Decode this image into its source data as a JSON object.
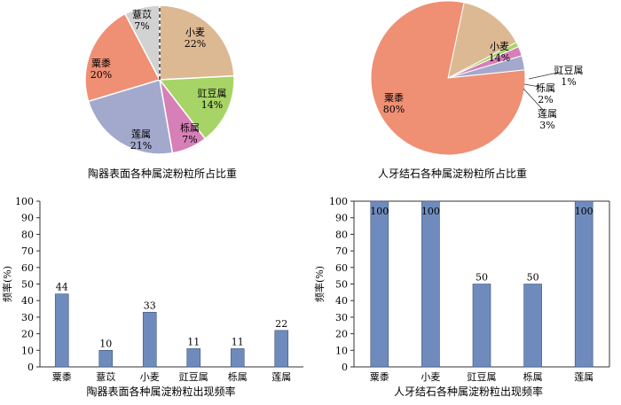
{
  "chart_data": [
    {
      "type": "pie",
      "title": "陶器表面各种属淀粉粒所占比重",
      "slices": [
        {
          "label": "小麦",
          "pct_label": "22%",
          "value": 22,
          "color": "#dcb993"
        },
        {
          "label": "豇豆属",
          "pct_label": "14%",
          "value": 14,
          "color": "#a7d466"
        },
        {
          "label": "栎属",
          "pct_label": "7%",
          "value": 7,
          "color": "#d77fb7"
        },
        {
          "label": "莲属",
          "pct_label": "21%",
          "value": 21,
          "color": "#a3a9cc"
        },
        {
          "label": "粟黍",
          "pct_label": "20%",
          "value": 20,
          "color": "#ef8f74"
        },
        {
          "label": "薏苡",
          "pct_label": "7%",
          "value": 7,
          "color": "#d2d2d2"
        }
      ]
    },
    {
      "type": "pie",
      "title": "人牙结石各种属淀粉粒所占比重",
      "slices": [
        {
          "label": "小麦",
          "pct_label": "14%",
          "value": 14,
          "color": "#dcb993"
        },
        {
          "label": "豇豆属",
          "pct_label": "1%",
          "value": 1,
          "color": "#a7d466"
        },
        {
          "label": "栎属",
          "pct_label": "2%",
          "value": 2,
          "color": "#d77fb7"
        },
        {
          "label": "莲属",
          "pct_label": "3%",
          "value": 3,
          "color": "#a3a9cc"
        },
        {
          "label": "粟黍",
          "pct_label": "80%",
          "value": 80,
          "color": "#ef8f74"
        }
      ]
    },
    {
      "type": "bar",
      "title": "陶器表面各种属淀粉粒出现频率",
      "ylabel": "频率(%)",
      "categories": [
        "粟黍",
        "薏苡",
        "小麦",
        "豇豆属",
        "栎属",
        "莲属"
      ],
      "values": [
        44,
        10,
        33,
        11,
        11,
        22
      ],
      "ylim": [
        0,
        100
      ],
      "yticks": [
        0,
        10,
        20,
        30,
        40,
        50,
        60,
        70,
        80,
        90,
        100
      ],
      "bar_color": "#6f8bbd"
    },
    {
      "type": "bar",
      "title": "人牙结石各种属淀粉粒出现频率",
      "ylabel": "频率(%)",
      "categories": [
        "粟黍",
        "小麦",
        "豇豆属",
        "栎属",
        "莲属"
      ],
      "values": [
        100,
        100,
        50,
        50,
        100
      ],
      "ylim": [
        0,
        100
      ],
      "yticks": [
        0,
        10,
        20,
        30,
        40,
        50,
        60,
        70,
        80,
        90,
        100
      ],
      "bar_color": "#6f8bbd"
    }
  ]
}
